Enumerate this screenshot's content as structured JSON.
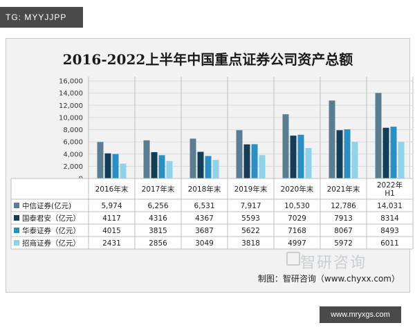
{
  "tag_label": "TG: MYYJJPP",
  "site_label": "www.mryxgs.com",
  "watermark_text": "智研咨询",
  "source_text": "制图：智研咨询（www.chyxx.com）",
  "colors": {
    "series": [
      "#5b7d91",
      "#143e57",
      "#2a8fc2",
      "#8fd3ea"
    ],
    "card_bg": "#f2f2f2",
    "grid": "#d9d9d9"
  },
  "chart_data": {
    "type": "bar",
    "title": "2016-2022上半年中国重点证券公司资产总额",
    "categories": [
      "2016年末",
      "2017年末",
      "2018年末",
      "2019年末",
      "2020年末",
      "2021年末",
      "2022年H1"
    ],
    "y_ticks": [
      "16,000",
      "14,000",
      "12,000",
      "10,000",
      "8,000",
      "6,000",
      "4,000",
      "2,000",
      "0"
    ],
    "ylim": [
      0,
      16000
    ],
    "legend_placement": "table-left",
    "series": [
      {
        "name": "中信证券(亿元)",
        "values": [
          5974,
          6256,
          6531,
          7917,
          10530,
          12786,
          14031
        ],
        "labels": [
          "5,974",
          "6,256",
          "6,531",
          "7,917",
          "10,530",
          "12,786",
          "14,031"
        ]
      },
      {
        "name": "国泰君安（亿元）",
        "values": [
          4117,
          4316,
          4367,
          5593,
          7029,
          7913,
          8314
        ],
        "labels": [
          "4117",
          "4316",
          "4367",
          "5593",
          "7029",
          "7913",
          "8314"
        ]
      },
      {
        "name": "华泰证券（亿元）",
        "values": [
          4015,
          3815,
          3687,
          5622,
          7168,
          8067,
          8493
        ],
        "labels": [
          "4015",
          "3815",
          "3687",
          "5622",
          "7168",
          "8067",
          "8493"
        ]
      },
      {
        "name": "招商证券（亿元）",
        "values": [
          2431,
          2856,
          3049,
          3818,
          4997,
          5972,
          6011
        ],
        "labels": [
          "2431",
          "2856",
          "3049",
          "3818",
          "4997",
          "5972",
          "6011"
        ]
      }
    ]
  }
}
